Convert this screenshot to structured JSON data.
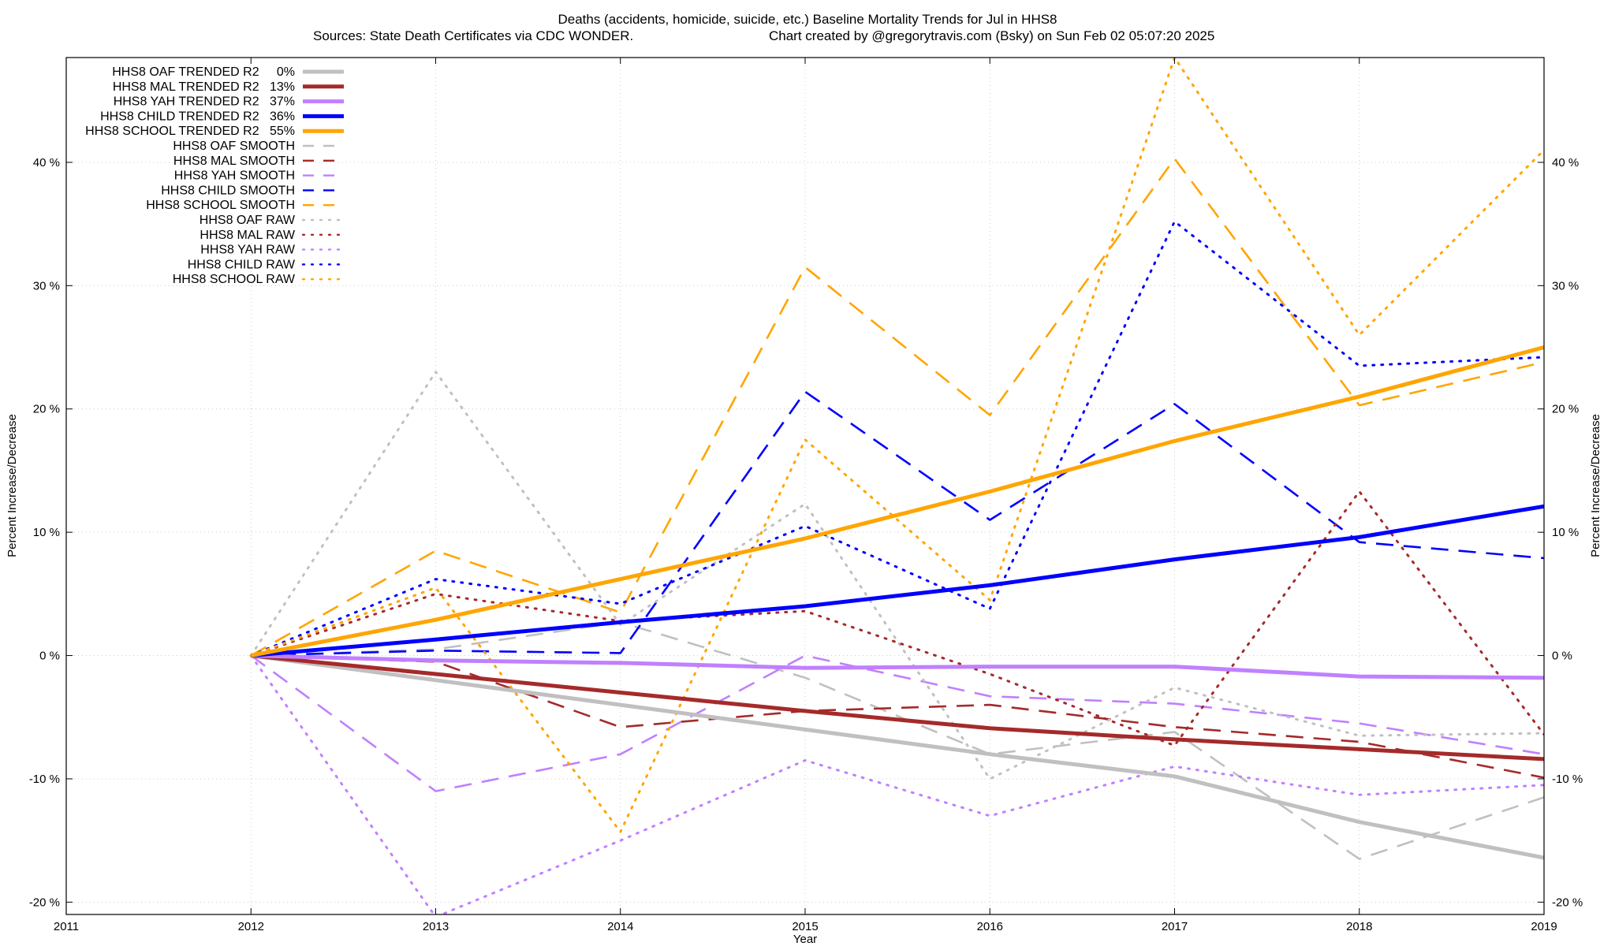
{
  "chart_data": {
    "type": "line",
    "title_line1": "Deaths (accidents, homicide, suicide, etc.)  Baseline Mortality Trends for Jul in HHS8",
    "title_line2_left": "Sources: State Death Certificates via CDC WONDER.",
    "title_line2_right": "Chart created by @gregorytravis.com (Bsky) on Sun Feb 02 05:07:20 2025",
    "xlabel": "Year",
    "ylabel_left": "Percent Increase/Decrease",
    "ylabel_right": "Percent Increase/Decrease",
    "xlim": [
      2011,
      2019
    ],
    "ylim": [
      -21,
      48.5
    ],
    "x_ticks": [
      "2011",
      "2012",
      "2013",
      "2014",
      "2015",
      "2016",
      "2017",
      "2018",
      "2019"
    ],
    "y_ticks": [
      {
        "value": -20,
        "label": "-20 %"
      },
      {
        "value": -10,
        "label": "-10 %"
      },
      {
        "value": 0,
        "label": "0 %"
      },
      {
        "value": 10,
        "label": "10 %"
      },
      {
        "value": 20,
        "label": "20 %"
      },
      {
        "value": 30,
        "label": "30 %"
      },
      {
        "value": 40,
        "label": "40 %"
      }
    ],
    "grid": true,
    "legend_position": "top-left",
    "x": [
      2012,
      2013,
      2014,
      2015,
      2016,
      2017,
      2018,
      2019
    ],
    "series": [
      {
        "name": "HHS8 OAF TRENDED R2",
        "r2": "0%",
        "style": "solid",
        "color": "#c0c0c0",
        "values": [
          0,
          -2.0,
          -4.0,
          -6.0,
          -8.0,
          -9.8,
          -13.5,
          -16.4
        ]
      },
      {
        "name": "HHS8 MAL TRENDED R2",
        "r2": "13%",
        "style": "solid",
        "color": "#a52a2a",
        "values": [
          0,
          -1.5,
          -3.0,
          -4.5,
          -5.9,
          -6.8,
          -7.6,
          -8.4
        ]
      },
      {
        "name": "HHS8 YAH TRENDED R2",
        "r2": "37%",
        "style": "solid",
        "color": "#c080ff",
        "values": [
          0,
          -0.4,
          -0.6,
          -1.0,
          -0.9,
          -0.9,
          -1.7,
          -1.8
        ]
      },
      {
        "name": "HHS8 CHILD TRENDED R2",
        "r2": "36%",
        "style": "solid",
        "color": "#0000ff",
        "values": [
          0,
          1.3,
          2.7,
          4.0,
          5.7,
          7.8,
          9.6,
          12.1
        ]
      },
      {
        "name": "HHS8 SCHOOL TRENDED R2",
        "r2": "55%",
        "style": "solid",
        "color": "#ffa500",
        "values": [
          0,
          2.9,
          6.2,
          9.5,
          13.3,
          17.4,
          21.0,
          25.0
        ]
      },
      {
        "name": "HHS8 OAF SMOOTH",
        "r2": "",
        "style": "dashed",
        "color": "#c0c0c0",
        "values": [
          0,
          0.5,
          2.7,
          -1.8,
          -8.0,
          -6.2,
          -16.5,
          -11.5
        ]
      },
      {
        "name": "HHS8 MAL SMOOTH",
        "r2": "",
        "style": "dashed",
        "color": "#a52a2a",
        "values": [
          0,
          -0.5,
          -5.8,
          -4.5,
          -4.0,
          -5.8,
          -7.0,
          -9.9
        ]
      },
      {
        "name": "HHS8 YAH SMOOTH",
        "r2": "",
        "style": "dashed",
        "color": "#c080ff",
        "values": [
          0,
          -11.0,
          -8.0,
          0.0,
          -3.3,
          -3.9,
          -5.5,
          -8.0
        ]
      },
      {
        "name": "HHS8 CHILD SMOOTH",
        "r2": "",
        "style": "dashed",
        "color": "#0000ff",
        "values": [
          0,
          0.4,
          0.2,
          21.4,
          11.0,
          20.4,
          9.2,
          7.9
        ]
      },
      {
        "name": "HHS8 SCHOOL SMOOTH",
        "r2": "",
        "style": "dashed",
        "color": "#ffa500",
        "values": [
          0,
          8.5,
          3.5,
          31.5,
          19.5,
          40.3,
          20.3,
          23.8
        ]
      },
      {
        "name": "HHS8 OAF RAW",
        "r2": "",
        "style": "dotted",
        "color": "#c0c0c0",
        "values": [
          0,
          23.0,
          2.5,
          12.3,
          -10.0,
          -2.6,
          -6.5,
          -6.3
        ]
      },
      {
        "name": "HHS8 MAL RAW",
        "r2": "",
        "style": "dotted",
        "color": "#a52a2a",
        "values": [
          0,
          5.0,
          2.8,
          3.6,
          -1.5,
          -7.3,
          13.3,
          -6.4
        ]
      },
      {
        "name": "HHS8 YAH RAW",
        "r2": "",
        "style": "dotted",
        "color": "#c080ff",
        "values": [
          0,
          -21.2,
          -15.0,
          -8.5,
          -13.0,
          -9.0,
          -11.3,
          -10.5
        ]
      },
      {
        "name": "HHS8 CHILD RAW",
        "r2": "",
        "style": "dotted",
        "color": "#0000ff",
        "values": [
          0,
          6.2,
          4.2,
          10.5,
          3.8,
          35.2,
          23.5,
          24.2
        ]
      },
      {
        "name": "HHS8 SCHOOL RAW",
        "r2": "",
        "style": "dotted",
        "color": "#ffa500",
        "values": [
          0,
          5.5,
          -14.3,
          17.5,
          4.5,
          48.5,
          26.0,
          41.0
        ]
      }
    ]
  }
}
